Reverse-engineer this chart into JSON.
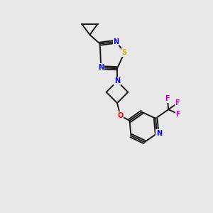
{
  "bg_color": "#e8e8e8",
  "bond_color": "#1a1a1a",
  "N_color": "#0000ff",
  "S_color": "#b8b800",
  "O_color": "#ff0000",
  "F_color": "#cc00cc",
  "figsize": [
    3.0,
    3.0
  ],
  "dpi": 100,
  "xlim": [
    0,
    10
  ],
  "ylim": [
    0,
    10
  ]
}
